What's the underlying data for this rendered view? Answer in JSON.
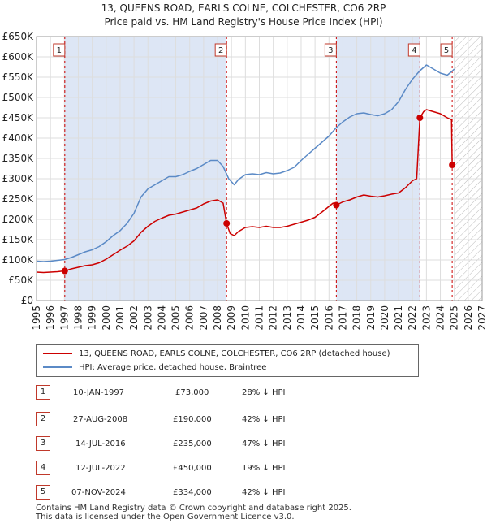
{
  "title_line1": "13, QUEENS ROAD, EARLS COLNE, COLCHESTER, CO6 2RP",
  "title_line2": "Price paid vs. HM Land Registry's House Price Index (HPI)",
  "legend": {
    "red": "13, QUEENS ROAD, EARLS COLNE, COLCHESTER, CO6 2RP (detached house)",
    "blue": "HPI: Average price, detached house, Braintree"
  },
  "colors": {
    "price_paid": "#cc0000",
    "hpi": "#5b8ac6",
    "shade": "#dde6f5",
    "grid": "#dddddd"
  },
  "transactions": [
    {
      "num": "1",
      "date": "10-JAN-1997",
      "price": "£73,000",
      "hpi": "28% ↓ HPI"
    },
    {
      "num": "2",
      "date": "27-AUG-2008",
      "price": "£190,000",
      "hpi": "42% ↓ HPI"
    },
    {
      "num": "3",
      "date": "14-JUL-2016",
      "price": "£235,000",
      "hpi": "47% ↓ HPI"
    },
    {
      "num": "4",
      "date": "12-JUL-2022",
      "price": "£450,000",
      "hpi": "19% ↓ HPI"
    },
    {
      "num": "5",
      "date": "07-NOV-2024",
      "price": "£334,000",
      "hpi": "42% ↓ HPI"
    }
  ],
  "footer_line1": "Contains HM Land Registry data © Crown copyright and database right 2025.",
  "footer_line2": "This data is licensed under the Open Government Licence v3.0.",
  "chart_data": {
    "type": "line",
    "xlim": [
      1995,
      2027
    ],
    "ylim": [
      0,
      650000
    ],
    "x_ticks": [
      1995,
      1996,
      1997,
      1998,
      1999,
      2000,
      2001,
      2002,
      2003,
      2004,
      2005,
      2006,
      2007,
      2008,
      2009,
      2010,
      2011,
      2012,
      2013,
      2014,
      2015,
      2016,
      2017,
      2018,
      2019,
      2020,
      2021,
      2022,
      2023,
      2024,
      2025,
      2026,
      2027
    ],
    "y_ticks": [
      0,
      50000,
      100000,
      150000,
      200000,
      250000,
      300000,
      350000,
      400000,
      450000,
      500000,
      550000,
      600000,
      650000
    ],
    "y_tick_labels": [
      "£0",
      "£50K",
      "£100K",
      "£150K",
      "£200K",
      "£250K",
      "£300K",
      "£350K",
      "£400K",
      "£450K",
      "£500K",
      "£550K",
      "£600K",
      "£650K"
    ],
    "shaded_periods": [
      [
        1997.03,
        2008.65
      ],
      [
        2016.53,
        2022.53
      ]
    ],
    "hatch_from": 2025.0,
    "series": [
      {
        "name": "13, QUEENS ROAD, EARLS COLNE, COLCHESTER, CO6 2RP (detached house)",
        "x": [
          1995.0,
          1995.5,
          1996.0,
          1996.5,
          1997.03,
          1997.5,
          1998.0,
          1998.5,
          1999.0,
          1999.5,
          2000.0,
          2000.5,
          2001.0,
          2001.5,
          2002.0,
          2002.5,
          2003.0,
          2003.5,
          2004.0,
          2004.5,
          2005.0,
          2005.5,
          2006.0,
          2006.5,
          2007.0,
          2007.5,
          2008.0,
          2008.4,
          2008.65,
          2008.9,
          2009.2,
          2009.5,
          2010.0,
          2010.5,
          2011.0,
          2011.5,
          2012.0,
          2012.5,
          2013.0,
          2013.5,
          2014.0,
          2014.5,
          2015.0,
          2015.5,
          2016.0,
          2016.3,
          2016.53,
          2017.0,
          2017.5,
          2018.0,
          2018.5,
          2019.0,
          2019.5,
          2020.0,
          2020.5,
          2021.0,
          2021.5,
          2022.0,
          2022.3,
          2022.53,
          2022.8,
          2023.0,
          2023.5,
          2024.0,
          2024.5,
          2024.8,
          2024.85
        ],
        "y": [
          70000,
          69000,
          70000,
          71000,
          73000,
          78000,
          82000,
          86000,
          88000,
          93000,
          102000,
          113000,
          124000,
          134000,
          147000,
          168000,
          183000,
          195000,
          203000,
          210000,
          213000,
          218000,
          223000,
          228000,
          238000,
          245000,
          248000,
          240000,
          190000,
          165000,
          160000,
          170000,
          180000,
          182000,
          180000,
          183000,
          180000,
          180000,
          183000,
          188000,
          193000,
          198000,
          205000,
          218000,
          232000,
          240000,
          235000,
          243000,
          248000,
          255000,
          260000,
          257000,
          255000,
          258000,
          262000,
          265000,
          278000,
          295000,
          300000,
          450000,
          465000,
          470000,
          465000,
          460000,
          450000,
          445000,
          334000
        ]
      },
      {
        "name": "HPI: Average price, detached house, Braintree",
        "x": [
          1995.0,
          1995.5,
          1996.0,
          1996.5,
          1997.0,
          1997.5,
          1998.0,
          1998.5,
          1999.0,
          1999.5,
          2000.0,
          2000.5,
          2001.0,
          2001.5,
          2002.0,
          2002.5,
          2003.0,
          2003.5,
          2004.0,
          2004.5,
          2005.0,
          2005.5,
          2006.0,
          2006.5,
          2007.0,
          2007.5,
          2008.0,
          2008.4,
          2008.8,
          2009.2,
          2009.5,
          2010.0,
          2010.5,
          2011.0,
          2011.5,
          2012.0,
          2012.5,
          2013.0,
          2013.5,
          2014.0,
          2014.5,
          2015.0,
          2015.5,
          2016.0,
          2016.5,
          2017.0,
          2017.5,
          2018.0,
          2018.5,
          2019.0,
          2019.5,
          2020.0,
          2020.5,
          2021.0,
          2021.5,
          2022.0,
          2022.5,
          2023.0,
          2023.5,
          2024.0,
          2024.5,
          2024.85,
          2025.0
        ],
        "y": [
          97000,
          96000,
          97000,
          99000,
          101000,
          106000,
          113000,
          120000,
          125000,
          133000,
          145000,
          160000,
          172000,
          190000,
          215000,
          255000,
          275000,
          285000,
          295000,
          305000,
          305000,
          310000,
          318000,
          325000,
          335000,
          345000,
          345000,
          330000,
          300000,
          285000,
          298000,
          310000,
          312000,
          310000,
          315000,
          312000,
          314000,
          320000,
          328000,
          345000,
          360000,
          375000,
          390000,
          405000,
          425000,
          440000,
          452000,
          460000,
          462000,
          458000,
          455000,
          460000,
          470000,
          490000,
          520000,
          545000,
          565000,
          580000,
          570000,
          560000,
          555000,
          565000,
          570000
        ]
      }
    ],
    "markers": [
      {
        "label": "1",
        "x": 1997.03,
        "y": 73000
      },
      {
        "label": "2",
        "x": 2008.65,
        "y": 190000
      },
      {
        "label": "3",
        "x": 2016.53,
        "y": 235000
      },
      {
        "label": "4",
        "x": 2022.53,
        "y": 450000
      },
      {
        "label": "5",
        "x": 2024.85,
        "y": 334000
      }
    ]
  }
}
